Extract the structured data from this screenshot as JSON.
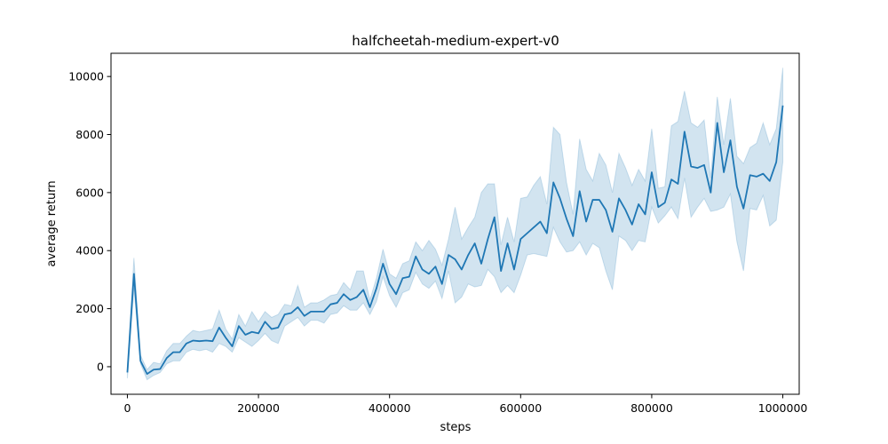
{
  "chart_data": {
    "type": "line",
    "title": "halfcheetah-medium-expert-v0",
    "xlabel": "steps",
    "ylabel": "average return",
    "xlim": [
      -25000,
      1025000
    ],
    "ylim": [
      -950,
      10800
    ],
    "xticks": [
      0,
      200000,
      400000,
      600000,
      800000,
      1000000
    ],
    "xtick_labels": [
      "0",
      "200000",
      "400000",
      "600000",
      "800000",
      "1000000"
    ],
    "yticks": [
      0,
      2000,
      4000,
      6000,
      8000,
      10000
    ],
    "ytick_labels": [
      "0",
      "2000",
      "4000",
      "6000",
      "8000",
      "10000"
    ],
    "grid": false,
    "legend": "none",
    "series": [
      {
        "color": "#1f77b4",
        "band_color": "#1f77b4",
        "band_opacity": 0.2,
        "x": [
          0,
          10000,
          20000,
          30000,
          40000,
          50000,
          60000,
          70000,
          80000,
          90000,
          100000,
          110000,
          120000,
          130000,
          140000,
          150000,
          160000,
          170000,
          180000,
          190000,
          200000,
          210000,
          220000,
          230000,
          240000,
          250000,
          260000,
          270000,
          280000,
          290000,
          300000,
          310000,
          320000,
          330000,
          340000,
          350000,
          360000,
          370000,
          380000,
          390000,
          400000,
          410000,
          420000,
          430000,
          440000,
          450000,
          460000,
          470000,
          480000,
          490000,
          500000,
          510000,
          520000,
          530000,
          540000,
          550000,
          560000,
          570000,
          580000,
          590000,
          600000,
          610000,
          620000,
          630000,
          640000,
          650000,
          660000,
          670000,
          680000,
          690000,
          700000,
          710000,
          720000,
          730000,
          740000,
          750000,
          760000,
          770000,
          780000,
          790000,
          800000,
          810000,
          820000,
          830000,
          840000,
          850000,
          860000,
          870000,
          880000,
          890000,
          900000,
          910000,
          920000,
          930000,
          940000,
          950000,
          960000,
          970000,
          980000,
          990000,
          1000000
        ],
        "values": [
          -200,
          3200,
          200,
          -250,
          -100,
          -80,
          300,
          500,
          500,
          800,
          900,
          880,
          900,
          880,
          1350,
          1000,
          700,
          1400,
          1100,
          1200,
          1150,
          1550,
          1300,
          1350,
          1800,
          1850,
          2050,
          1750,
          1900,
          1900,
          1900,
          2150,
          2200,
          2500,
          2300,
          2400,
          2650,
          2050,
          2700,
          3550,
          2850,
          2500,
          3050,
          3100,
          3800,
          3350,
          3200,
          3450,
          2850,
          3850,
          3700,
          3350,
          3850,
          4250,
          3550,
          4400,
          5150,
          3300,
          4250,
          3350,
          4400,
          4600,
          4800,
          5000,
          4600,
          6350,
          5800,
          5100,
          4500,
          6050,
          5000,
          5750,
          5750,
          5400,
          4650,
          5800,
          5400,
          4900,
          5600,
          5250,
          6700,
          5500,
          5650,
          6450,
          6300,
          8100,
          6900,
          6850,
          6950,
          6000,
          8400,
          6700,
          7800,
          6200,
          5450,
          6600,
          6550,
          6650,
          6400,
          7050,
          9000
        ],
        "lower": [
          -400,
          2700,
          100,
          -450,
          -300,
          -200,
          100,
          200,
          200,
          500,
          600,
          550,
          600,
          500,
          800,
          700,
          500,
          1000,
          850,
          700,
          900,
          1150,
          900,
          800,
          1400,
          1550,
          1700,
          1400,
          1600,
          1600,
          1500,
          1800,
          1850,
          2100,
          1950,
          1950,
          2200,
          1800,
          2250,
          3100,
          2450,
          2050,
          2550,
          2650,
          3250,
          2850,
          2700,
          2950,
          2350,
          3300,
          2200,
          2400,
          2850,
          2750,
          2800,
          3350,
          3100,
          2550,
          2800,
          2550,
          3150,
          3850,
          3900,
          3850,
          3800,
          4800,
          4300,
          3950,
          4000,
          4300,
          3850,
          4250,
          4100,
          3300,
          2650,
          4500,
          4350,
          4000,
          4350,
          4300,
          5500,
          4950,
          5200,
          5500,
          5100,
          6500,
          5150,
          5500,
          5800,
          5350,
          5400,
          5500,
          5950,
          4300,
          3300,
          5450,
          5400,
          5900,
          4850,
          5050,
          7050
        ],
        "upper": [
          50,
          3750,
          400,
          -100,
          150,
          100,
          550,
          800,
          800,
          1050,
          1250,
          1200,
          1250,
          1300,
          1950,
          1300,
          950,
          1800,
          1400,
          1900,
          1550,
          1900,
          1700,
          1800,
          2150,
          2100,
          2800,
          2050,
          2200,
          2200,
          2300,
          2450,
          2500,
          2900,
          2650,
          3300,
          3300,
          2300,
          3050,
          4050,
          3200,
          3050,
          3550,
          3650,
          4300,
          4000,
          4350,
          4050,
          3500,
          4400,
          5500,
          4400,
          4800,
          5150,
          6000,
          6300,
          6300,
          4200,
          5150,
          4300,
          5800,
          5850,
          6250,
          6550,
          5600,
          8250,
          8000,
          6350,
          5250,
          7850,
          6800,
          6400,
          7350,
          6950,
          6000,
          7350,
          6850,
          6250,
          6800,
          6400,
          8200,
          6150,
          6200,
          8300,
          8450,
          9500,
          8400,
          8250,
          8500,
          6500,
          9300,
          7650,
          9250,
          7250,
          7000,
          7550,
          7700,
          8400,
          7650,
          8200,
          10300
        ]
      }
    ]
  }
}
